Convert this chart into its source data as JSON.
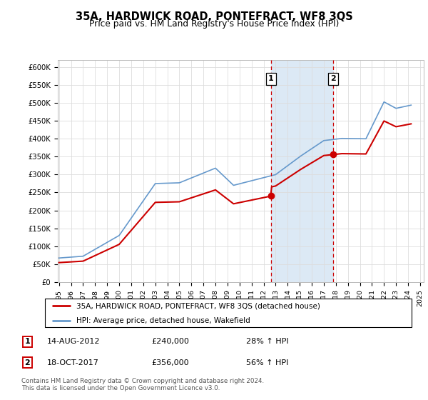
{
  "title": "35A, HARDWICK ROAD, PONTEFRACT, WF8 3QS",
  "subtitle": "Price paid vs. HM Land Registry's House Price Index (HPI)",
  "background_color": "#ffffff",
  "plot_bg_color": "#ffffff",
  "grid_color": "#dddddd",
  "ylim": [
    0,
    620000
  ],
  "yticks": [
    0,
    50000,
    100000,
    150000,
    200000,
    250000,
    300000,
    350000,
    400000,
    450000,
    500000,
    550000,
    600000
  ],
  "ytick_labels": [
    "£0",
    "£50K",
    "£100K",
    "£150K",
    "£200K",
    "£250K",
    "£300K",
    "£350K",
    "£400K",
    "£450K",
    "£500K",
    "£550K",
    "£600K"
  ],
  "xlim_start": 1994.9,
  "xlim_end": 2025.3,
  "sale1_x": 2012.617,
  "sale1_y": 240000,
  "sale1_label": "1",
  "sale2_x": 2017.792,
  "sale2_y": 356000,
  "sale2_label": "2",
  "red_line_color": "#cc0000",
  "blue_line_color": "#6699cc",
  "shaded_color": "#dce9f5",
  "vline_color": "#cc0000",
  "sale_dot_color": "#cc0000",
  "legend_line1": "35A, HARDWICK ROAD, PONTEFRACT, WF8 3QS (detached house)",
  "legend_line2": "HPI: Average price, detached house, Wakefield",
  "table_entries": [
    {
      "num": "1",
      "date": "14-AUG-2012",
      "price": "£240,000",
      "change": "28% ↑ HPI"
    },
    {
      "num": "2",
      "date": "18-OCT-2017",
      "price": "£356,000",
      "change": "56% ↑ HPI"
    }
  ],
  "footer": "Contains HM Land Registry data © Crown copyright and database right 2024.\nThis data is licensed under the Open Government Licence v3.0."
}
